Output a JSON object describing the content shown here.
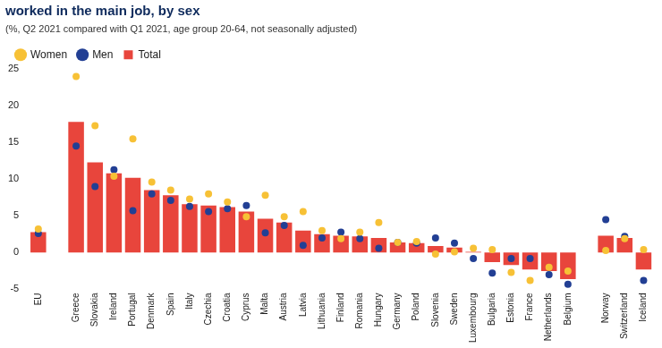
{
  "chart_data": {
    "type": "bar",
    "title": "worked in the main job, by sex",
    "subtitle": "(%, Q2 2021 compared with Q1 2021, age group 20-64, not seasonally adjusted)",
    "categories": [
      "EU",
      null,
      "Greece",
      "Slovakia",
      "Ireland",
      "Portugal",
      "Denmark",
      "Spain",
      "Italy",
      "Czechia",
      "Croatia",
      "Cyprus",
      "Malta",
      "Austria",
      "Latvia",
      "Lithuania",
      "Finland",
      "Romania",
      "Hungary",
      "Germany",
      "Poland",
      "Slovenia",
      "Sweden",
      "Luxembourg",
      "Bulgaria",
      "Estonia",
      "France",
      "Netherlands",
      "Belgium",
      null,
      "Norway",
      "Switzerland",
      "Iceland"
    ],
    "series": [
      {
        "name": "Total",
        "type": "bar",
        "color": "#e8453c",
        "values": [
          2.8,
          null,
          17.8,
          12.3,
          10.8,
          10.2,
          8.5,
          7.8,
          6.6,
          6.4,
          6.2,
          5.6,
          4.6,
          4.1,
          3.0,
          2.5,
          2.3,
          2.2,
          2.0,
          1.4,
          1.3,
          0.9,
          0.7,
          0.1,
          -1.3,
          -1.7,
          -2.3,
          -2.5,
          -3.6,
          null,
          2.3,
          2.0,
          -2.3
        ]
      },
      {
        "name": "Men",
        "type": "scatter",
        "marker": "circle",
        "color": "#223f94",
        "values": [
          2.6,
          null,
          14.5,
          9.0,
          11.3,
          5.7,
          8.0,
          7.1,
          6.3,
          5.6,
          6.0,
          6.4,
          2.7,
          3.7,
          1.0,
          2.0,
          2.8,
          1.9,
          0.6,
          1.4,
          1.3,
          2.0,
          1.3,
          -0.8,
          -2.8,
          -0.8,
          -0.8,
          -3.0,
          -4.3,
          null,
          4.5,
          2.2,
          -3.8
        ]
      },
      {
        "name": "Women",
        "type": "scatter",
        "marker": "circle",
        "color": "#f7c136",
        "values": [
          3.2,
          null,
          24.0,
          17.3,
          10.4,
          15.5,
          9.6,
          8.5,
          7.3,
          8.0,
          6.9,
          4.9,
          7.8,
          4.9,
          5.6,
          3.0,
          1.9,
          2.8,
          4.1,
          1.4,
          1.5,
          -0.2,
          0.1,
          0.6,
          0.4,
          -2.7,
          -3.8,
          -2.0,
          -2.5,
          null,
          0.3,
          1.9,
          0.4
        ]
      }
    ],
    "ylim": [
      -5,
      25
    ],
    "yticks": [
      -5,
      0,
      5,
      10,
      15,
      20,
      25
    ],
    "grid": false,
    "legend": "top-left"
  }
}
